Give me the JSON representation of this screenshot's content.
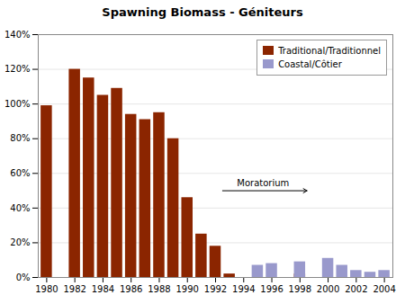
{
  "chart_data": {
    "type": "bar",
    "title": "Spawning Biomass - Géniteurs",
    "x": [
      1980,
      1981,
      1982,
      1983,
      1984,
      1985,
      1986,
      1987,
      1988,
      1989,
      1990,
      1991,
      1992,
      1993,
      1994,
      1995,
      1996,
      1997,
      1998,
      1999,
      2000,
      2001,
      2002,
      2003,
      2004
    ],
    "series": [
      {
        "name": "Traditional/Traditionnel",
        "color": "#8B2500",
        "values": [
          99,
          0,
          120,
          115,
          105,
          109,
          94,
          91,
          95,
          80,
          46,
          25,
          18,
          2,
          0,
          0,
          0,
          0,
          2,
          0,
          0,
          0,
          0,
          0,
          0
        ]
      },
      {
        "name": "Coastal/Côtier",
        "color": "#9999CC",
        "values": [
          0,
          0,
          0,
          0,
          0,
          0,
          0,
          0,
          0,
          0,
          0,
          0,
          0,
          0,
          0,
          7,
          8,
          0,
          9,
          0,
          11,
          7,
          4,
          3,
          4
        ]
      }
    ],
    "xlim": [
      1979.4,
      2004.6
    ],
    "xticks": [
      1980,
      1982,
      1984,
      1986,
      1988,
      1990,
      1992,
      1994,
      1996,
      1998,
      2000,
      2002,
      2004
    ],
    "ylim": [
      0,
      140
    ],
    "yticks": [
      {
        "value": 0,
        "label": "0%"
      },
      {
        "value": 20,
        "label": "20%"
      },
      {
        "value": 40,
        "label": "40%"
      },
      {
        "value": 60,
        "label": "60%"
      },
      {
        "value": 80,
        "label": "80%"
      },
      {
        "value": 100,
        "label": "100%"
      },
      {
        "value": 120,
        "label": "120%"
      },
      {
        "value": 140,
        "label": "140%"
      }
    ],
    "grid": true,
    "legend": "upper right",
    "stacked": false,
    "annotations": [
      {
        "text": "Moratorium",
        "x_start": 1992.5,
        "x_end": 1998.5,
        "y": 50
      }
    ]
  }
}
